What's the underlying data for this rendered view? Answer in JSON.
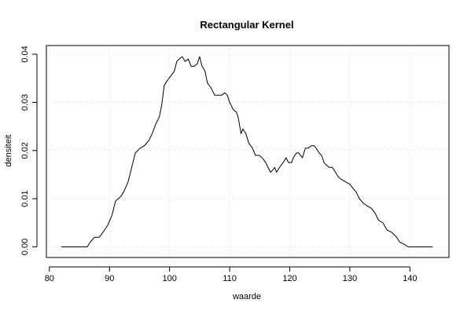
{
  "chart_data": {
    "type": "line",
    "title": "Rectangular Kernel",
    "xlabel": "waarde",
    "ylabel": "densiteit",
    "xlim": [
      79.5,
      146.5
    ],
    "ylim": [
      -0.0022,
      0.0418
    ],
    "x_ticks": [
      80,
      90,
      100,
      110,
      120,
      130,
      140
    ],
    "y_ticks": [
      0.0,
      0.01,
      0.02,
      0.03,
      0.04
    ],
    "x_tick_labels": [
      "80",
      "90",
      "100",
      "110",
      "120",
      "130",
      "140"
    ],
    "y_tick_labels": [
      "0.00",
      "0.01",
      "0.02",
      "0.03",
      "0.04"
    ],
    "grid": true,
    "series": [
      {
        "x": [
          82.0,
          84.0,
          86.3,
          86.8,
          87.5,
          88.3,
          88.9,
          89.7,
          90.4,
          91.0,
          91.9,
          92.4,
          93.1,
          93.7,
          94.3,
          95.1,
          95.8,
          96.5,
          97.1,
          97.7,
          98.3,
          98.7,
          99.1,
          99.6,
          100.2,
          100.8,
          101.2,
          101.6,
          102.1,
          102.6,
          103.1,
          103.6,
          104.1,
          104.6,
          105.0,
          105.4,
          105.9,
          106.3,
          106.9,
          107.5,
          108.1,
          108.7,
          109.2,
          109.6,
          110.0,
          110.6,
          111.1,
          111.4,
          111.9,
          112.2,
          112.7,
          113.2,
          113.8,
          114.3,
          114.9,
          115.4,
          116.0,
          116.4,
          116.8,
          117.2,
          117.5,
          117.8,
          118.3,
          118.9,
          119.4,
          119.8,
          120.3,
          120.6,
          121.1,
          121.5,
          122.1,
          122.6,
          123.1,
          123.6,
          124.0,
          124.4,
          124.9,
          125.3,
          125.7,
          126.1,
          126.6,
          127.1,
          127.6,
          128.1,
          128.6,
          129.3,
          130.0,
          130.6,
          131.0,
          131.6,
          132.3,
          132.9,
          133.6,
          134.2,
          134.8,
          135.5,
          136.2,
          137.0,
          137.8,
          138.3,
          139.1,
          139.7,
          140.3,
          141.5,
          143.8
        ],
        "y": [
          0.0,
          0.0,
          0.0,
          0.001,
          0.002,
          0.002,
          0.003,
          0.0045,
          0.0065,
          0.0095,
          0.0105,
          0.0115,
          0.0135,
          0.0165,
          0.0195,
          0.0205,
          0.021,
          0.022,
          0.0235,
          0.0255,
          0.027,
          0.0295,
          0.0335,
          0.0345,
          0.0355,
          0.0365,
          0.0385,
          0.039,
          0.0395,
          0.0385,
          0.039,
          0.0375,
          0.0375,
          0.038,
          0.0395,
          0.0375,
          0.0365,
          0.034,
          0.033,
          0.0315,
          0.0315,
          0.0315,
          0.032,
          0.0315,
          0.03,
          0.0285,
          0.028,
          0.027,
          0.0235,
          0.0245,
          0.0235,
          0.0215,
          0.0205,
          0.019,
          0.019,
          0.0185,
          0.0175,
          0.0165,
          0.0155,
          0.016,
          0.0165,
          0.0155,
          0.0165,
          0.0175,
          0.0185,
          0.0175,
          0.0175,
          0.0185,
          0.0195,
          0.0195,
          0.0185,
          0.0205,
          0.0205,
          0.021,
          0.021,
          0.0205,
          0.0195,
          0.019,
          0.0175,
          0.017,
          0.0165,
          0.0165,
          0.0155,
          0.0145,
          0.014,
          0.0135,
          0.013,
          0.012,
          0.0115,
          0.01,
          0.009,
          0.0085,
          0.008,
          0.007,
          0.0055,
          0.005,
          0.0035,
          0.003,
          0.002,
          0.001,
          0.0005,
          0.0,
          0.0,
          0.0,
          0.0
        ]
      }
    ]
  }
}
